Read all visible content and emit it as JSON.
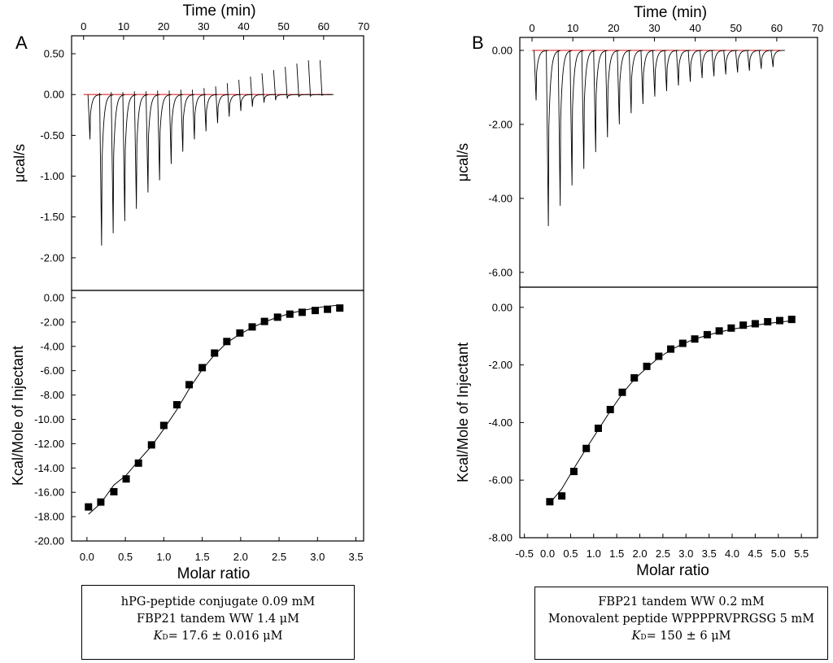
{
  "panels": [
    {
      "letter": "A",
      "legend": {
        "line1": "hPG-peptide conjugate 0.09 mM",
        "line2": "FBP21 tandem WW 1.4 μM",
        "kd_symbol": "K",
        "kd_sub": "D",
        "kd_value": "= 17.6 ± 0.016 μM"
      }
    },
    {
      "letter": "B",
      "legend": {
        "line1": "FBP21 tandem WW 0.2  mM",
        "line2": "Monovalent peptide WPPPPRVPRGSG 5 mM",
        "kd_symbol": "K",
        "kd_sub": "D",
        "kd_value": "= 150 ± 6 μM"
      }
    }
  ],
  "chart_data": [
    {
      "type": "line",
      "panel": "A",
      "role": "thermogram",
      "title": "",
      "xlabel": "Time (min)",
      "ylabel": "μcal/s",
      "xlim": [
        -3,
        70
      ],
      "ylim": [
        -2.4,
        0.72
      ],
      "x_ticks": [
        0,
        10,
        20,
        30,
        40,
        50,
        60,
        70
      ],
      "x_tick_labels": [
        "0",
        "10",
        "20",
        "30",
        "40",
        "50",
        "60",
        "70"
      ],
      "y_ticks": [
        0.5,
        0,
        -0.5,
        -1,
        -1.5,
        -2
      ],
      "y_tick_labels": [
        "0.50",
        "0.00",
        "-0.50",
        "-1.00",
        "-1.50",
        "-2.00"
      ],
      "baseline": {
        "y": 0.0,
        "x_range": [
          0,
          62
        ],
        "color": "#e0292c"
      },
      "injections": {
        "time": [
          1.6,
          4.5,
          7.4,
          10.3,
          13.2,
          16.1,
          19.0,
          21.9,
          24.8,
          27.7,
          30.6,
          33.5,
          36.4,
          39.3,
          42.2,
          45.1,
          48.0,
          50.9,
          53.8,
          56.7,
          59.6
        ],
        "peak_min": [
          -0.55,
          -1.85,
          -1.7,
          -1.55,
          -1.4,
          -1.2,
          -1.05,
          -0.85,
          -0.7,
          -0.55,
          -0.45,
          -0.35,
          -0.27,
          -0.2,
          -0.15,
          -0.1,
          -0.07,
          -0.05,
          -0.03,
          -0.02,
          -0.01
        ],
        "peak_max": [
          0.0,
          0.02,
          0.03,
          0.03,
          0.04,
          0.04,
          0.05,
          0.05,
          0.06,
          0.06,
          0.08,
          0.1,
          0.14,
          0.18,
          0.22,
          0.26,
          0.3,
          0.34,
          0.38,
          0.42,
          0.42
        ]
      }
    },
    {
      "type": "scatter",
      "panel": "A",
      "role": "binding_isotherm",
      "title": "",
      "xlabel": "Molar  ratio",
      "ylabel": "Kcal/Mole of Injectant",
      "xlim": [
        -0.2,
        3.6
      ],
      "ylim": [
        -20.0,
        0.6
      ],
      "x_ticks": [
        0,
        0.5,
        1,
        1.5,
        2,
        2.5,
        3,
        3.5
      ],
      "x_tick_labels": [
        "0.0",
        "0.5",
        "1.0",
        "1.5",
        "2.0",
        "2.5",
        "3.0",
        "3.5"
      ],
      "y_ticks": [
        0,
        -2,
        -4,
        -6,
        -8,
        -10,
        -12,
        -14,
        -16,
        -18,
        -20
      ],
      "y_tick_labels": [
        "0.00",
        "-2.00",
        "-4.00",
        "-6.00",
        "-8.00",
        "-10.00",
        "-12.00",
        "-14.00",
        "-16.00",
        "-18.00",
        "-20.00"
      ],
      "series": [
        {
          "name": "data",
          "x": [
            0.02,
            0.18,
            0.35,
            0.51,
            0.67,
            0.84,
            1.0,
            1.17,
            1.33,
            1.5,
            1.66,
            1.82,
            1.99,
            2.15,
            2.31,
            2.48,
            2.64,
            2.8,
            2.97,
            3.13,
            3.29
          ],
          "y": [
            -17.2,
            -16.8,
            -15.95,
            -14.9,
            -13.6,
            -12.1,
            -10.5,
            -8.8,
            -7.15,
            -5.75,
            -4.55,
            -3.6,
            -2.9,
            -2.4,
            -1.95,
            -1.6,
            -1.35,
            -1.2,
            -1.05,
            -0.95,
            -0.85
          ]
        },
        {
          "name": "fit",
          "x": [
            0.02,
            0.18,
            0.35,
            0.51,
            0.67,
            0.84,
            1.0,
            1.17,
            1.33,
            1.5,
            1.66,
            1.82,
            1.99,
            2.15,
            2.31,
            2.48,
            2.64,
            2.8,
            2.97,
            3.13,
            3.29
          ],
          "y": [
            -17.8,
            -16.9,
            -15.4,
            -14.6,
            -13.4,
            -12.2,
            -10.8,
            -9.2,
            -7.5,
            -5.9,
            -4.7,
            -3.7,
            -3.0,
            -2.45,
            -2.0,
            -1.6,
            -1.3,
            -1.05,
            -0.85,
            -0.7,
            -0.6
          ]
        }
      ]
    },
    {
      "type": "line",
      "panel": "B",
      "role": "thermogram",
      "title": "",
      "xlabel": "Time (min)",
      "ylabel": "μcal/s",
      "xlim": [
        -3,
        70
      ],
      "ylim": [
        -6.4,
        0.35
      ],
      "x_ticks": [
        0,
        10,
        20,
        30,
        40,
        50,
        60,
        70
      ],
      "x_tick_labels": [
        "0",
        "10",
        "20",
        "30",
        "40",
        "50",
        "60",
        "70"
      ],
      "y_ticks": [
        0,
        -2,
        -4,
        -6
      ],
      "y_tick_labels": [
        "0.00",
        "-2.00",
        "-4.00",
        "-6.00"
      ],
      "baseline": {
        "y": 0.0,
        "x_range": [
          0,
          61
        ],
        "color": "#e0292c"
      },
      "injections": {
        "time": [
          1.0,
          4.0,
          6.9,
          9.8,
          12.7,
          15.6,
          18.5,
          21.4,
          24.3,
          27.2,
          30.1,
          33.0,
          35.9,
          38.8,
          41.7,
          44.6,
          47.5,
          50.4,
          53.3,
          56.2,
          59.1
        ],
        "peak_min": [
          -1.35,
          -4.75,
          -4.2,
          -3.65,
          -3.2,
          -2.75,
          -2.35,
          -2.0,
          -1.7,
          -1.45,
          -1.25,
          -1.1,
          -0.95,
          -0.85,
          -0.75,
          -0.7,
          -0.65,
          -0.6,
          -0.55,
          -0.5,
          -0.45
        ],
        "peak_max": [
          0,
          0,
          0,
          0,
          0,
          0,
          0,
          0,
          0,
          0,
          0,
          0,
          0,
          0,
          0,
          0,
          0,
          0,
          0,
          0,
          0
        ]
      }
    },
    {
      "type": "scatter",
      "panel": "B",
      "role": "binding_isotherm",
      "title": "",
      "xlabel": "Molar  ratio",
      "ylabel": "Kcal/Mole of Injectant",
      "xlim": [
        -0.6,
        5.85
      ],
      "ylim": [
        -8.0,
        0.7
      ],
      "x_ticks": [
        -0.5,
        0,
        0.5,
        1,
        1.5,
        2,
        2.5,
        3,
        3.5,
        4,
        4.5,
        5,
        5.5
      ],
      "x_tick_labels": [
        "-0.5",
        "0.0",
        "0.5",
        "1.0",
        "1.5",
        "2.0",
        "2.5",
        "3.0",
        "3.5",
        "4.0",
        "4.5",
        "5.0",
        "5.5"
      ],
      "y_ticks": [
        0,
        -2,
        -4,
        -6,
        -8
      ],
      "y_tick_labels": [
        "0.00",
        "-2.00",
        "-4.00",
        "-6.00",
        "-8.00"
      ],
      "series": [
        {
          "name": "data",
          "x": [
            0.05,
            0.31,
            0.57,
            0.84,
            1.1,
            1.36,
            1.62,
            1.88,
            2.15,
            2.41,
            2.67,
            2.93,
            3.19,
            3.46,
            3.72,
            3.98,
            4.24,
            4.5,
            4.77,
            5.03,
            5.29
          ],
          "y": [
            -6.75,
            -6.55,
            -5.7,
            -4.9,
            -4.2,
            -3.55,
            -2.95,
            -2.45,
            -2.05,
            -1.7,
            -1.45,
            -1.25,
            -1.1,
            -0.95,
            -0.82,
            -0.72,
            -0.62,
            -0.57,
            -0.5,
            -0.46,
            -0.42
          ]
        },
        {
          "name": "fit",
          "x": [
            0.05,
            0.31,
            0.57,
            0.84,
            1.1,
            1.36,
            1.62,
            1.88,
            2.15,
            2.41,
            2.67,
            2.93,
            3.19,
            3.46,
            3.72,
            3.98,
            4.24,
            4.5,
            4.77,
            5.03,
            5.29
          ],
          "y": [
            -6.8,
            -6.3,
            -5.6,
            -4.9,
            -4.25,
            -3.6,
            -3.0,
            -2.5,
            -2.1,
            -1.75,
            -1.48,
            -1.27,
            -1.1,
            -0.97,
            -0.86,
            -0.77,
            -0.69,
            -0.62,
            -0.56,
            -0.51,
            -0.47
          ]
        }
      ]
    }
  ]
}
